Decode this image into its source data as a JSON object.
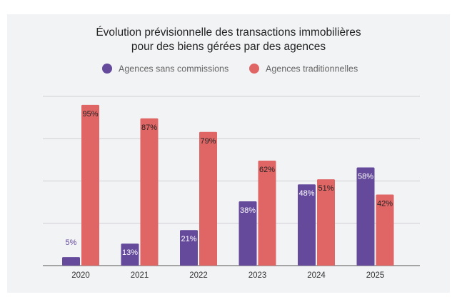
{
  "chart_data": {
    "type": "bar",
    "title_lines": [
      "Évolution prévisionnelle des transactions immobilières",
      "pour des biens gérées par des agences"
    ],
    "categories": [
      "2020",
      "2021",
      "2022",
      "2023",
      "2024",
      "2025"
    ],
    "series": [
      {
        "name": "Agences sans commissions",
        "color": "#654a9c",
        "values": [
          5,
          13,
          21,
          38,
          48,
          58
        ],
        "labels": [
          "5%",
          "13%",
          "21%",
          "38%",
          "48%",
          "58%"
        ]
      },
      {
        "name": "Agences traditionnelles",
        "color": "#e06666",
        "values": [
          95,
          87,
          79,
          62,
          51,
          42
        ],
        "labels": [
          "95%",
          "87%",
          "79%",
          "62%",
          "51%",
          "42%"
        ]
      }
    ],
    "xlabel": "",
    "ylabel": "",
    "ylim": [
      0,
      100
    ],
    "gridlines": [
      25,
      50,
      75,
      100
    ],
    "grid": true,
    "legend_position": "top"
  }
}
